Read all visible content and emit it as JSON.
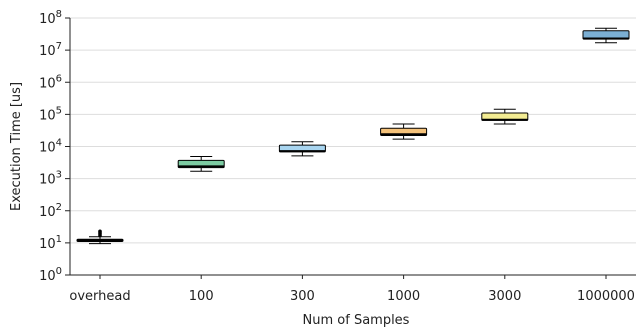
{
  "chart_data": {
    "type": "box",
    "title": "",
    "xlabel": "Num of Samples",
    "ylabel": "Execution Time [us]",
    "y_scale": "log10",
    "ylim": [
      1,
      100000000
    ],
    "yticks": [
      {
        "value": 1,
        "base": "10",
        "exp": "0"
      },
      {
        "value": 10,
        "base": "10",
        "exp": "1"
      },
      {
        "value": 100,
        "base": "10",
        "exp": "2"
      },
      {
        "value": 1000,
        "base": "10",
        "exp": "3"
      },
      {
        "value": 10000,
        "base": "10",
        "exp": "4"
      },
      {
        "value": 100000,
        "base": "10",
        "exp": "5"
      },
      {
        "value": 1000000,
        "base": "10",
        "exp": "6"
      },
      {
        "value": 10000000,
        "base": "10",
        "exp": "7"
      },
      {
        "value": 100000000,
        "base": "10",
        "exp": "8"
      }
    ],
    "grid": "horizontal",
    "categories": [
      "overhead",
      "100",
      "300",
      "1000",
      "3000",
      "1000000"
    ],
    "boxes": [
      {
        "category": "overhead",
        "whisker_low": 9.5,
        "q1": 11,
        "median": 12,
        "q3": 13,
        "whisker_high": 15.5,
        "outliers": [
          17,
          19,
          21,
          23
        ],
        "color": "#c79fef"
      },
      {
        "category": "100",
        "whisker_low": 1700,
        "q1": 2200,
        "median": 2400,
        "q3": 3700,
        "whisker_high": 4900,
        "outliers": [],
        "color": "#7ccba2"
      },
      {
        "category": "300",
        "whisker_low": 5100,
        "q1": 6800,
        "median": 7200,
        "q3": 11000,
        "whisker_high": 14000,
        "outliers": [],
        "color": "#a8d5f0"
      },
      {
        "category": "1000",
        "whisker_low": 17000,
        "q1": 22000,
        "median": 24000,
        "q3": 37000,
        "whisker_high": 50000,
        "outliers": [],
        "color": "#f5c27a"
      },
      {
        "category": "3000",
        "whisker_low": 50000,
        "q1": 65000,
        "median": 68000,
        "q3": 110000,
        "whisker_high": 145000,
        "outliers": [],
        "color": "#f3ec93"
      },
      {
        "category": "1000000",
        "whisker_low": 17000000,
        "q1": 22000000,
        "median": 23000000,
        "q3": 40000000,
        "whisker_high": 48000000,
        "outliers": [],
        "color": "#7bafd4"
      }
    ]
  },
  "colors": {
    "axis": "#222222",
    "grid": "#dddddd",
    "box_edge": "#000000",
    "median": "#000000"
  }
}
